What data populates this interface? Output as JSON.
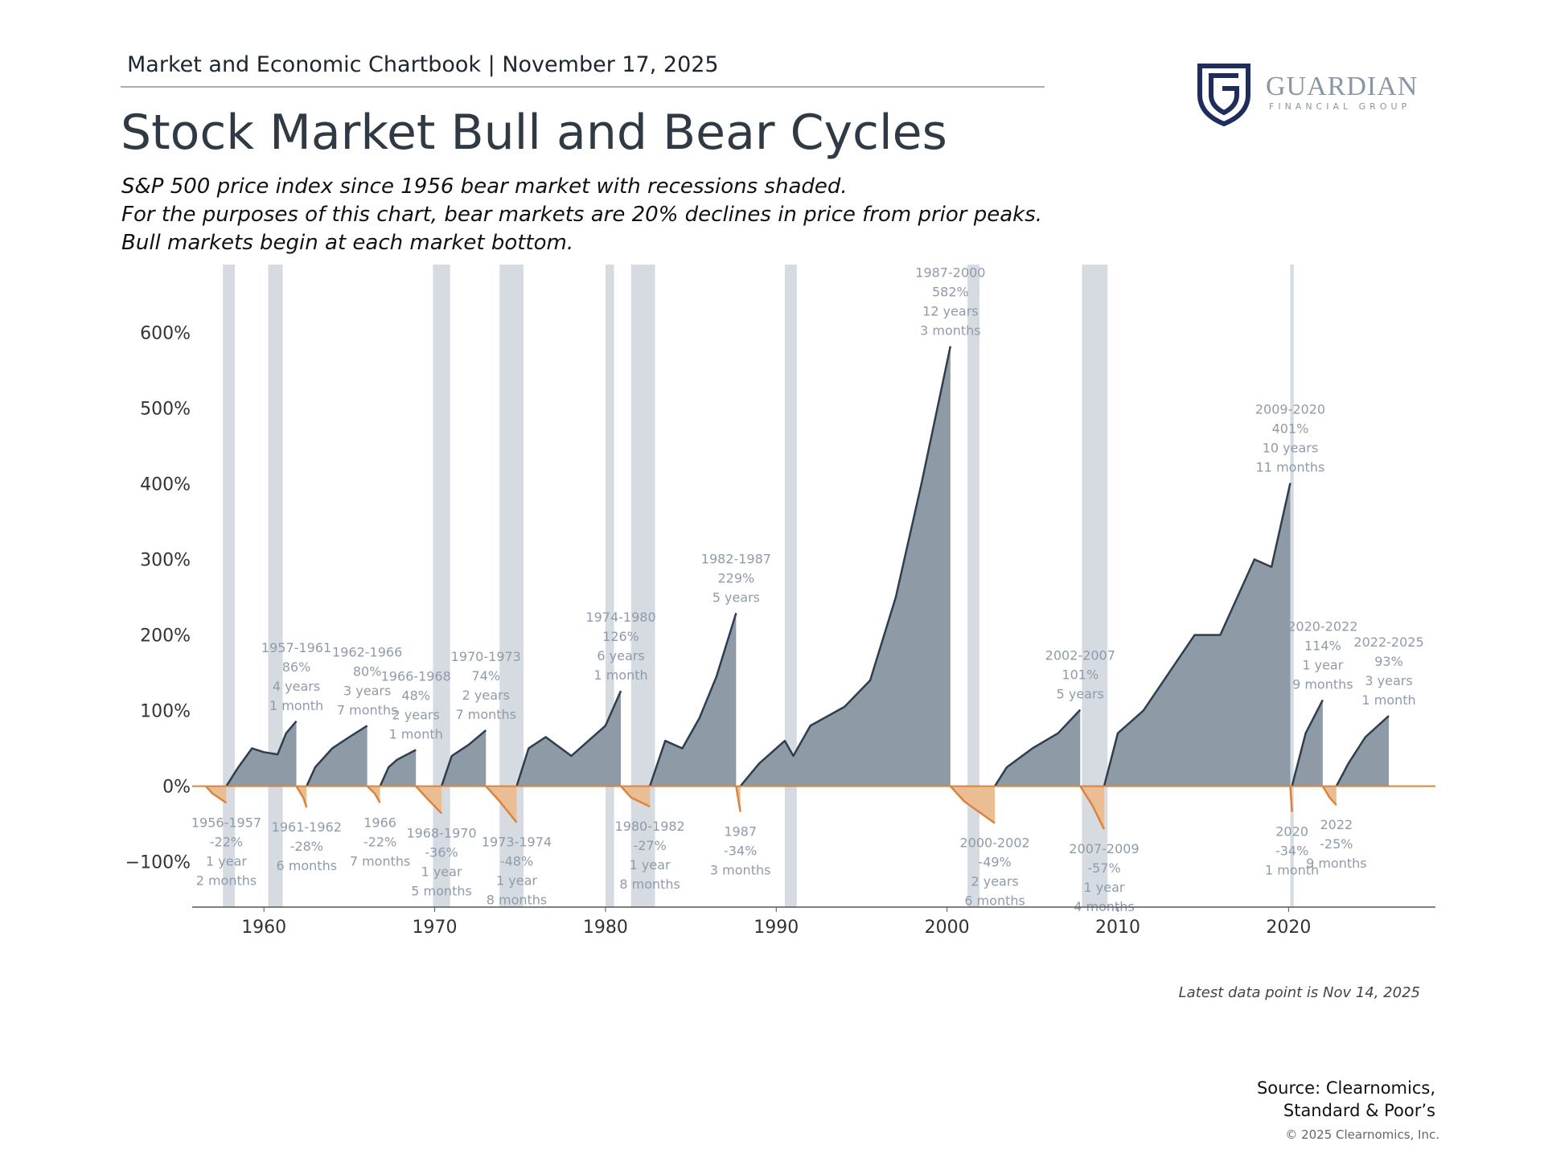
{
  "header": "Market and Economic Chartbook | November 17, 2025",
  "logo": {
    "name": "GUARDIAN",
    "tagline": "FINANCIAL GROUP"
  },
  "source": [
    "Source: Clearnomics,",
    "Standard & Poor’s"
  ],
  "copyright": "© 2025 Clearnomics, Inc.",
  "chart_data": {
    "type": "area",
    "title": "Stock Market Bull and Bear Cycles",
    "subtitle": [
      "S&P 500 price index since 1956 bear market with recessions shaded.",
      "For the purposes of this chart, bear markets are 20% declines in price from prior peaks.",
      "Bull markets begin at each market bottom."
    ],
    "note": "Latest data point is Nov 14, 2025",
    "xlim": [
      1955.8,
      2028.6
    ],
    "xticks": [
      1960,
      1970,
      1980,
      1990,
      2000,
      2010,
      2020
    ],
    "ylim": [
      -160,
      690
    ],
    "yticks": [
      {
        "value": -100,
        "label": "−100%"
      },
      {
        "value": 0,
        "label": "0%"
      },
      {
        "value": 100,
        "label": "100%"
      },
      {
        "value": 200,
        "label": "200%"
      },
      {
        "value": 300,
        "label": "300%"
      },
      {
        "value": 400,
        "label": "400%"
      },
      {
        "value": 500,
        "label": "500%"
      },
      {
        "value": 600,
        "label": "600%"
      }
    ],
    "grid": false,
    "bull_color": "#8e9aa6",
    "bull_line": "#2e3e4e",
    "bear_color": "#ebbd92",
    "bear_line": "#d9843f",
    "recession_color": "#d5dbe0",
    "recessions": [
      [
        1957.6,
        1958.3
      ],
      [
        1960.25,
        1961.1
      ],
      [
        1969.9,
        1970.9
      ],
      [
        1973.8,
        1975.2
      ],
      [
        1980.0,
        1980.5
      ],
      [
        1981.5,
        1982.9
      ],
      [
        1990.5,
        1991.2
      ],
      [
        2001.2,
        2001.9
      ],
      [
        2007.9,
        2009.4
      ],
      [
        2020.1,
        2020.3
      ]
    ],
    "bull_markets": [
      {
        "period": "1957-1961",
        "change": {
          "value": 86,
          "label": "86%"
        },
        "duration": [
          "4 years",
          "1 month"
        ],
        "x": [
          1957.8,
          1958.5,
          1959.3,
          1960.0,
          1960.8,
          1961.3,
          1961.9
        ],
        "values": [
          0,
          25,
          50,
          45,
          42,
          70,
          86
        ]
      },
      {
        "period": "1962-1966",
        "change": {
          "value": 80,
          "label": "80%"
        },
        "duration": [
          "3 years",
          "7 months"
        ],
        "x": [
          1962.5,
          1963,
          1964,
          1965,
          1966.05
        ],
        "values": [
          0,
          25,
          50,
          65,
          80
        ]
      },
      {
        "period": "1966-1968",
        "change": {
          "value": 48,
          "label": "48%"
        },
        "duration": [
          "2 years",
          "1 month"
        ],
        "x": [
          1966.8,
          1967.3,
          1967.8,
          1968.9
        ],
        "values": [
          0,
          25,
          35,
          48
        ]
      },
      {
        "period": "1970-1973",
        "change": {
          "value": 74,
          "label": "74%"
        },
        "duration": [
          "2 years",
          "7 months"
        ],
        "x": [
          1970.4,
          1971,
          1972,
          1973.0
        ],
        "values": [
          0,
          40,
          55,
          74
        ]
      },
      {
        "period": "1974-1980",
        "change": {
          "value": 126,
          "label": "126%"
        },
        "duration": [
          "6 years",
          "1 month"
        ],
        "x": [
          1974.8,
          1975.5,
          1976.5,
          1978,
          1979,
          1980,
          1980.9
        ],
        "values": [
          0,
          50,
          65,
          40,
          60,
          80,
          126
        ]
      },
      {
        "period": "1982-1987",
        "change": {
          "value": 229,
          "label": "229%"
        },
        "duration": [
          "5 years"
        ],
        "x": [
          1982.6,
          1983.5,
          1984.5,
          1985.5,
          1986.5,
          1987.65
        ],
        "values": [
          0,
          60,
          50,
          90,
          145,
          229
        ]
      },
      {
        "period": "1987-2000",
        "change": {
          "value": 582,
          "label": "582%"
        },
        "duration": [
          "12 years",
          "3 months"
        ],
        "x": [
          1987.9,
          1989,
          1990.5,
          1991,
          1992,
          1994,
          1995.5,
          1997,
          1998.5,
          2000.2
        ],
        "values": [
          0,
          30,
          60,
          40,
          80,
          105,
          140,
          250,
          400,
          582
        ]
      },
      {
        "period": "2002-2007",
        "change": {
          "value": 101,
          "label": "101%"
        },
        "duration": [
          "5 years"
        ],
        "x": [
          2002.8,
          2003.5,
          2005,
          2006.5,
          2007.8
        ],
        "values": [
          0,
          25,
          50,
          70,
          101
        ]
      },
      {
        "period": "2009-2020",
        "change": {
          "value": 401,
          "label": "401%"
        },
        "duration": [
          "10 years",
          "11 months"
        ],
        "x": [
          2009.2,
          2010,
          2011.5,
          2013,
          2014.5,
          2016,
          2018,
          2019,
          2020.1
        ],
        "values": [
          0,
          70,
          100,
          150,
          200,
          200,
          300,
          290,
          401
        ]
      },
      {
        "period": "2020-2022",
        "change": {
          "value": 114,
          "label": "114%"
        },
        "duration": [
          "1 year",
          "9 months"
        ],
        "x": [
          2020.2,
          2021,
          2022.0
        ],
        "values": [
          0,
          70,
          114
        ]
      },
      {
        "period": "2022-2025",
        "change": {
          "value": 93,
          "label": "93%"
        },
        "duration": [
          "3 years",
          "1 month"
        ],
        "x": [
          2022.8,
          2023.5,
          2024.5,
          2025.87
        ],
        "values": [
          0,
          30,
          65,
          93
        ]
      }
    ],
    "bear_markets": [
      {
        "period": "1956-1957",
        "change": {
          "value": -22,
          "label": "-22%"
        },
        "duration": [
          "1 year",
          "2 months"
        ],
        "x": [
          1956.6,
          1957,
          1957.8
        ],
        "values": [
          0,
          -10,
          -22
        ]
      },
      {
        "period": "1961-1962",
        "change": {
          "value": -28,
          "label": "-28%"
        },
        "duration": [
          "6 months"
        ],
        "x": [
          1961.9,
          1962.3,
          1962.5
        ],
        "values": [
          0,
          -15,
          -28
        ]
      },
      {
        "period": "1966",
        "change": {
          "value": -22,
          "label": "-22%"
        },
        "duration": [
          "7 months"
        ],
        "x": [
          1966.05,
          1966.5,
          1966.8
        ],
        "values": [
          0,
          -10,
          -22
        ]
      },
      {
        "period": "1968-1970",
        "change": {
          "value": -36,
          "label": "-36%"
        },
        "duration": [
          "1 year",
          "5 months"
        ],
        "x": [
          1968.9,
          1969.5,
          1970.4
        ],
        "values": [
          0,
          -15,
          -36
        ]
      },
      {
        "period": "1973-1974",
        "change": {
          "value": -48,
          "label": "-48%"
        },
        "duration": [
          "1 year",
          "8 months"
        ],
        "x": [
          1973.0,
          1973.8,
          1974.8
        ],
        "values": [
          0,
          -20,
          -48
        ]
      },
      {
        "period": "1980-1982",
        "change": {
          "value": -27,
          "label": "-27%"
        },
        "duration": [
          "1 year",
          "8 months"
        ],
        "x": [
          1980.9,
          1981.5,
          1982.6
        ],
        "values": [
          0,
          -15,
          -27
        ]
      },
      {
        "period": "1987",
        "change": {
          "value": -34,
          "label": "-34%"
        },
        "duration": [
          "3 months"
        ],
        "x": [
          1987.65,
          1987.9
        ],
        "values": [
          0,
          -34
        ]
      },
      {
        "period": "2000-2002",
        "change": {
          "value": -49,
          "label": "-49%"
        },
        "duration": [
          "2 years",
          "6 months"
        ],
        "x": [
          2000.2,
          2001,
          2002.8
        ],
        "values": [
          0,
          -20,
          -49
        ]
      },
      {
        "period": "2007-2009",
        "change": {
          "value": -57,
          "label": "-57%"
        },
        "duration": [
          "1 year",
          "4 months"
        ],
        "x": [
          2007.8,
          2008.5,
          2009.2
        ],
        "values": [
          0,
          -25,
          -57
        ]
      },
      {
        "period": "2020",
        "change": {
          "value": -34,
          "label": "-34%"
        },
        "duration": [
          "1 month"
        ],
        "x": [
          2020.1,
          2020.2
        ],
        "values": [
          0,
          -34
        ]
      },
      {
        "period": "2022",
        "change": {
          "value": -25,
          "label": "-25%"
        },
        "duration": [
          "9 months"
        ],
        "x": [
          2022.0,
          2022.4,
          2022.8
        ],
        "values": [
          0,
          -15,
          -25
        ]
      }
    ]
  }
}
